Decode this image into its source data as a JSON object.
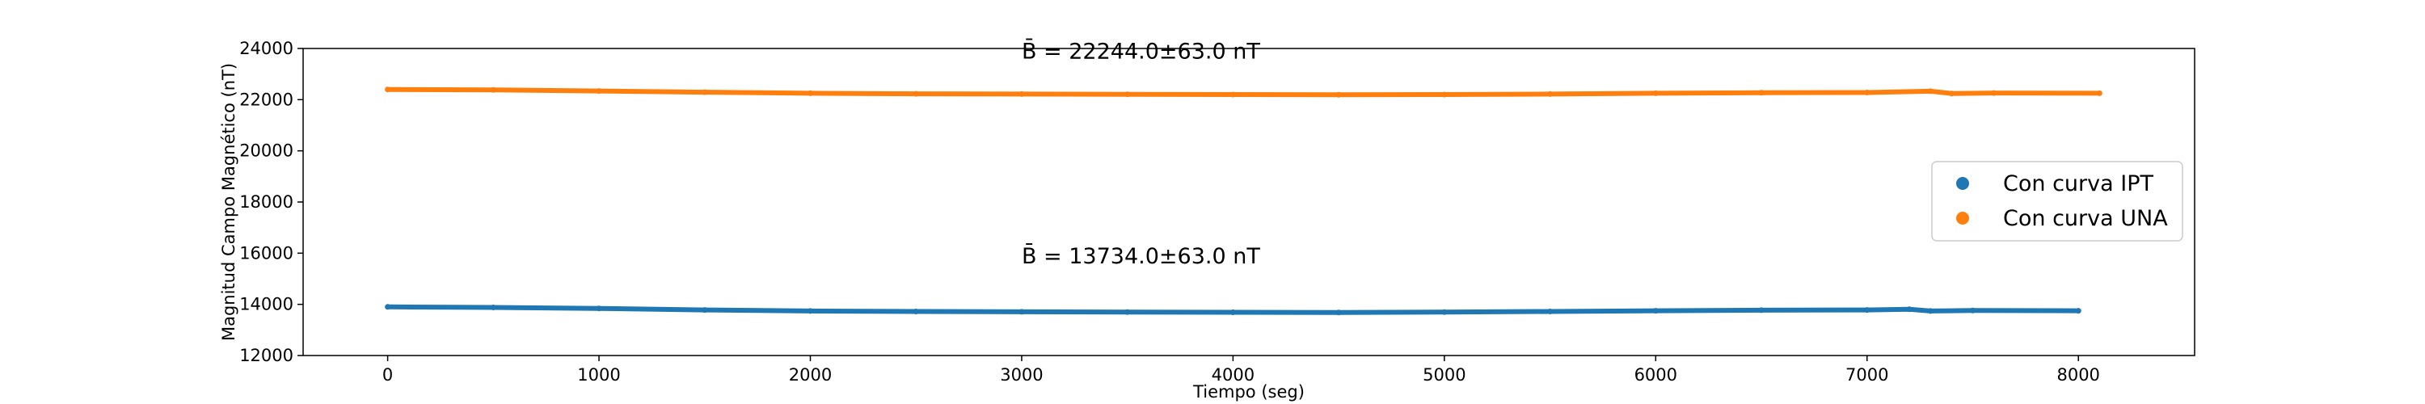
{
  "chart_data": {
    "type": "scatter",
    "title": "",
    "xlabel": "Tiempo (seg)",
    "ylabel": "Magnitud Campo Magnético (nT)",
    "xlim": [
      -400,
      8550
    ],
    "ylim": [
      12000,
      24000
    ],
    "x_ticks": [
      0,
      1000,
      2000,
      3000,
      4000,
      5000,
      6000,
      7000,
      8000
    ],
    "y_ticks": [
      12000,
      14000,
      16000,
      18000,
      20000,
      22000,
      24000
    ],
    "x_tick_labels": [
      "0",
      "1000",
      "2000",
      "3000",
      "4000",
      "5000",
      "6000",
      "7000",
      "8000"
    ],
    "y_tick_labels": [
      "12000",
      "14000",
      "16000",
      "18000",
      "20000",
      "22000",
      "24000"
    ],
    "grid": false,
    "legend_position": "center-right",
    "series": [
      {
        "name": "Con curva IPT",
        "color": "#1f77b4",
        "x": [
          0,
          500,
          1000,
          1500,
          2000,
          2500,
          3000,
          3500,
          4000,
          4500,
          5000,
          5500,
          6000,
          6500,
          7000,
          7200,
          7300,
          7500,
          8000
        ],
        "y": [
          13900,
          13880,
          13840,
          13780,
          13740,
          13720,
          13710,
          13700,
          13690,
          13680,
          13700,
          13720,
          13750,
          13770,
          13780,
          13810,
          13740,
          13760,
          13750
        ]
      },
      {
        "name": "Con curva UNA",
        "color": "#ff7f0e",
        "x": [
          0,
          500,
          1000,
          1500,
          2000,
          2500,
          3000,
          3500,
          4000,
          4500,
          5000,
          5500,
          6000,
          6500,
          7000,
          7300,
          7400,
          7600,
          8100
        ],
        "y": [
          22400,
          22380,
          22340,
          22290,
          22250,
          22230,
          22220,
          22210,
          22200,
          22190,
          22200,
          22220,
          22250,
          22270,
          22280,
          22330,
          22240,
          22260,
          22250
        ]
      }
    ],
    "annotations": [
      {
        "text": "B̄ = 22244.0±63.0 nT",
        "x": 3000,
        "y": 23600
      },
      {
        "text": "B̄ = 13734.0±63.0 nT",
        "x": 3000,
        "y": 15600
      }
    ]
  }
}
